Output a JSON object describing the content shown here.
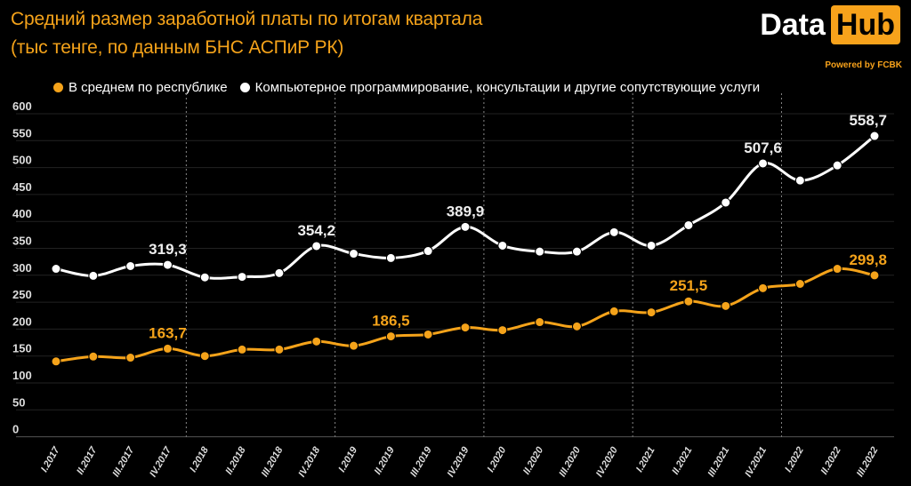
{
  "chart_data": {
    "type": "line",
    "title": "Средний размер заработной платы по итогам квартала",
    "subtitle": "(тыс тенге, по данным БНС АСПиР РК)",
    "xlabel": "",
    "ylabel": "",
    "ylim": [
      0,
      600
    ],
    "yticks": [
      "0",
      "50",
      "100",
      "150",
      "200",
      "250",
      "300",
      "350",
      "400",
      "450",
      "500",
      "550",
      "600"
    ],
    "categories": [
      "I.2017",
      "II.2017",
      "III.2017",
      "IV.2017",
      "I.2018",
      "II.2018",
      "III.2018",
      "IV.2018",
      "I.2019",
      "II.2019",
      "III.2019",
      "IV.2019",
      "I.2020",
      "II.2020",
      "III.2020",
      "IV.2020",
      "I.2021",
      "II.2021",
      "III.2021",
      "IV.2021",
      "I.2022",
      "II.2022",
      "III.2022"
    ],
    "legend_position": "top",
    "series": [
      {
        "name": "В среднем по республике",
        "color": "#f5a31a",
        "values": [
          140,
          149,
          147,
          163.7,
          150,
          162,
          162,
          177,
          169,
          186.5,
          190,
          203,
          198,
          213,
          205,
          233,
          231,
          251.5,
          243,
          276,
          284,
          312,
          299.8
        ],
        "labels": {
          "3": "163,7",
          "9": "186,5",
          "17": "251,5",
          "22": "299,8"
        }
      },
      {
        "name": "Компьютерное программирование, консультации и другие сопутствующие услуги",
        "color": "#ffffff",
        "values": [
          312,
          299,
          317,
          319.3,
          296,
          297,
          304,
          354.2,
          340,
          332,
          345,
          389.9,
          355,
          344,
          344,
          380,
          355,
          393,
          435,
          507.6,
          476,
          504,
          558.7
        ],
        "labels": {
          "3": "319,3",
          "7": "354,2",
          "11": "389,9",
          "19": "507,6",
          "22": "558,7"
        }
      }
    ]
  },
  "logo": {
    "text1": "Data",
    "text2": "Hub",
    "powered": "Powered by FCBK"
  }
}
